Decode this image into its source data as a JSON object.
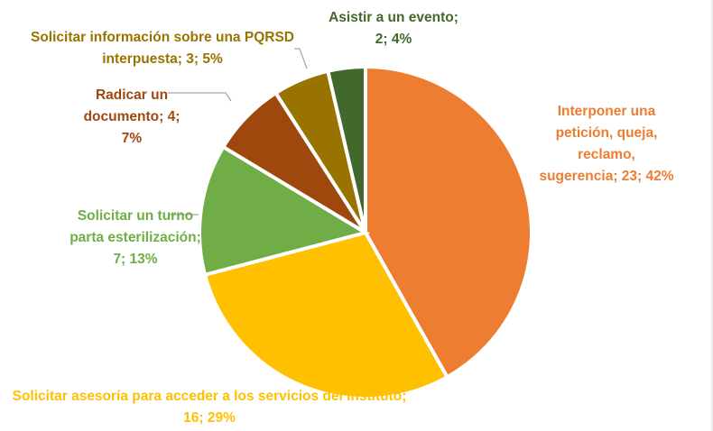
{
  "chart_data": {
    "type": "pie",
    "categories": [
      "Interponer una petición, queja, reclamo, sugerencia;",
      "Solicitar asesoría para acceder a los servicios del Instituto;",
      "Solicitar un turno parta esterilización;",
      "Radicar un documento;",
      "Solicitar información sobre una PQRSD interpuesta;",
      "Asistir a un evento;"
    ],
    "values": [
      23,
      16,
      7,
      4,
      3,
      2
    ],
    "value_labels": [
      "23; 42%",
      "16; 29%",
      "7; 13%",
      "4; 7%",
      "3; 5%",
      "2; 4%"
    ],
    "colors": [
      "#ED7D31",
      "#FFC000",
      "#70AD47",
      "#9E480E",
      "#997300",
      "#43682B"
    ]
  }
}
